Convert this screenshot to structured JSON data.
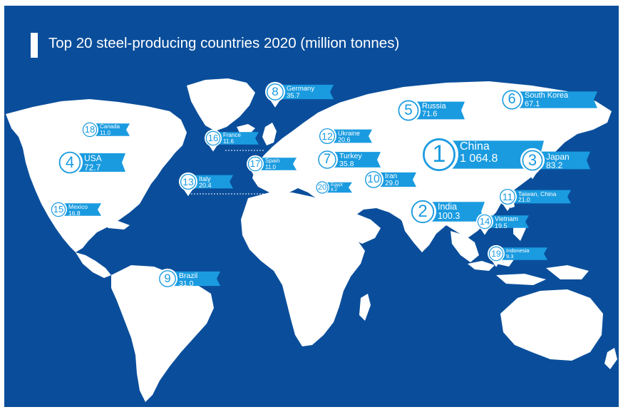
{
  "title": "Top 20 steel-producing countries 2020 (million tonnes)",
  "colors": {
    "ocean": "#0A4E9B",
    "land": "#FFFFFF",
    "marker": "#1A9BE0",
    "label_bg": "#1A9BE0"
  },
  "markers": [
    {
      "rank": "1",
      "country": "China",
      "value": "1 064.8"
    },
    {
      "rank": "2",
      "country": "India",
      "value": "100.3"
    },
    {
      "rank": "3",
      "country": "Japan",
      "value": "83.2"
    },
    {
      "rank": "4",
      "country": "USA",
      "value": "72.7"
    },
    {
      "rank": "5",
      "country": "Russia",
      "value": "71.6"
    },
    {
      "rank": "6",
      "country": "South Korea",
      "value": "67.1"
    },
    {
      "rank": "7",
      "country": "Turkey",
      "value": "35.8"
    },
    {
      "rank": "8",
      "country": "Germany",
      "value": "35.7"
    },
    {
      "rank": "9",
      "country": "Brazil",
      "value": "31.0"
    },
    {
      "rank": "10",
      "country": "Iran",
      "value": "29.0"
    },
    {
      "rank": "11",
      "country": "Taiwan, China",
      "value": "21.0"
    },
    {
      "rank": "12",
      "country": "Ukraine",
      "value": "20.6"
    },
    {
      "rank": "13",
      "country": "Italy",
      "value": "20.4"
    },
    {
      "rank": "14",
      "country": "Vietnam",
      "value": "19.5"
    },
    {
      "rank": "15",
      "country": "Mexico",
      "value": "16.8"
    },
    {
      "rank": "16",
      "country": "France",
      "value": "11.6"
    },
    {
      "rank": "17",
      "country": "Spain",
      "value": "11.0"
    },
    {
      "rank": "18",
      "country": "Canada",
      "value": "11.0"
    },
    {
      "rank": "19",
      "country": "Indonesia",
      "value": "9.3"
    },
    {
      "rank": "20",
      "country": "Egypt",
      "value": "8.2"
    }
  ]
}
